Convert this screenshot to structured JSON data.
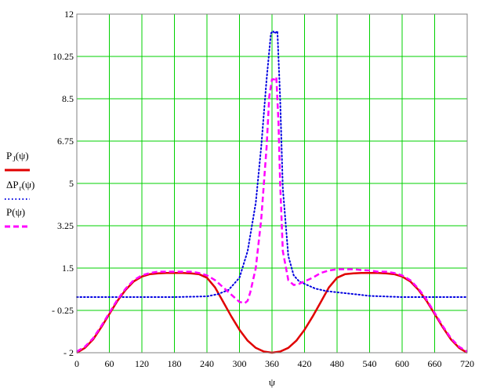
{
  "chart_data": {
    "type": "line",
    "title": "",
    "xlabel": "ψ",
    "ylabel": "",
    "xlim": [
      0,
      720
    ],
    "ylim": [
      -2,
      12
    ],
    "grid": true,
    "legend_position": "left",
    "x_ticks": [
      {
        "value": 0,
        "label": "0"
      },
      {
        "value": 60,
        "label": "60"
      },
      {
        "value": 120,
        "label": "120"
      },
      {
        "value": 180,
        "label": "180"
      },
      {
        "value": 240,
        "label": "240"
      },
      {
        "value": 300,
        "label": "300"
      },
      {
        "value": 360,
        "label": "360"
      },
      {
        "value": 420,
        "label": "420"
      },
      {
        "value": 480,
        "label": "480"
      },
      {
        "value": 540,
        "label": "540"
      },
      {
        "value": 600,
        "label": "600"
      },
      {
        "value": 660,
        "label": "660"
      },
      {
        "value": 720,
        "label": "720"
      }
    ],
    "y_ticks": [
      {
        "value": -2,
        "label": "- 2"
      },
      {
        "value": -0.25,
        "label": "- 0.25"
      },
      {
        "value": 1.5,
        "label": "1.5"
      },
      {
        "value": 3.25,
        "label": "3.25"
      },
      {
        "value": 5,
        "label": "5"
      },
      {
        "value": 6.75,
        "label": "6.75"
      },
      {
        "value": 8.5,
        "label": "8.5"
      },
      {
        "value": 10.25,
        "label": "10.25"
      },
      {
        "value": 12,
        "label": "12"
      }
    ],
    "series": [
      {
        "name": "P",
        "name_sub": "J",
        "name_suffix": "(ψ)",
        "color": "#e00000",
        "dash": "solid",
        "x": [
          0,
          15,
          30,
          45,
          60,
          75,
          90,
          105,
          120,
          135,
          150,
          165,
          180,
          195,
          210,
          225,
          240,
          255,
          270,
          285,
          300,
          315,
          330,
          345,
          360,
          375,
          390,
          405,
          420,
          435,
          450,
          465,
          480,
          495,
          510,
          525,
          540,
          555,
          570,
          585,
          600,
          615,
          630,
          645,
          660,
          675,
          690,
          705,
          720
        ],
        "y": [
          -2,
          -1.8,
          -1.45,
          -0.95,
          -0.4,
          0.15,
          0.6,
          0.95,
          1.15,
          1.25,
          1.28,
          1.3,
          1.3,
          1.3,
          1.28,
          1.25,
          1.1,
          0.7,
          0.1,
          -0.5,
          -1.05,
          -1.5,
          -1.8,
          -1.95,
          -2,
          -1.95,
          -1.8,
          -1.5,
          -1.05,
          -0.5,
          0.1,
          0.7,
          1.1,
          1.25,
          1.28,
          1.3,
          1.3,
          1.3,
          1.28,
          1.25,
          1.15,
          0.95,
          0.6,
          0.15,
          -0.4,
          -0.95,
          -1.45,
          -1.8,
          -2
        ]
      },
      {
        "name": "ΔP",
        "name_sub": "r",
        "name_suffix": "(ψ)",
        "color": "#0000e0",
        "dash": "dotted",
        "x": [
          0,
          60,
          120,
          180,
          240,
          260,
          280,
          300,
          315,
          330,
          340,
          350,
          358,
          362,
          365,
          370,
          375,
          380,
          390,
          400,
          410,
          420,
          440,
          460,
          480,
          500,
          520,
          540,
          600,
          660,
          720
        ],
        "y": [
          0.3,
          0.3,
          0.3,
          0.3,
          0.33,
          0.42,
          0.6,
          1.1,
          2.2,
          4.2,
          6.5,
          9.3,
          11.2,
          11.3,
          11.2,
          11.3,
          8.5,
          4.8,
          2.0,
          1.2,
          0.95,
          0.85,
          0.65,
          0.55,
          0.5,
          0.45,
          0.4,
          0.35,
          0.3,
          0.3,
          0.3
        ]
      },
      {
        "name": "P",
        "name_sub": "",
        "name_suffix": "(ψ)",
        "color": "#ff00ff",
        "dash": "dashed",
        "x": [
          0,
          15,
          30,
          45,
          60,
          75,
          90,
          105,
          120,
          135,
          150,
          165,
          180,
          195,
          210,
          225,
          240,
          255,
          270,
          285,
          300,
          310,
          315,
          320,
          330,
          340,
          350,
          355,
          360,
          365,
          368,
          372,
          375,
          380,
          390,
          400,
          410,
          420,
          435,
          450,
          465,
          480,
          495,
          510,
          525,
          540,
          555,
          570,
          585,
          600,
          615,
          630,
          645,
          660,
          675,
          690,
          705,
          720
        ],
        "y": [
          -1.95,
          -1.75,
          -1.4,
          -0.9,
          -0.35,
          0.2,
          0.65,
          1.0,
          1.2,
          1.3,
          1.35,
          1.35,
          1.35,
          1.35,
          1.35,
          1.3,
          1.2,
          1.0,
          0.7,
          0.4,
          0.1,
          0.05,
          0.15,
          0.5,
          1.5,
          3.5,
          6.5,
          8.6,
          9.3,
          9.3,
          9.4,
          7.5,
          5.0,
          2.2,
          1.0,
          0.8,
          0.85,
          0.95,
          1.1,
          1.3,
          1.4,
          1.45,
          1.45,
          1.45,
          1.42,
          1.4,
          1.35,
          1.35,
          1.3,
          1.2,
          1.0,
          0.65,
          0.2,
          -0.35,
          -0.9,
          -1.4,
          -1.75,
          -1.95
        ]
      }
    ]
  }
}
